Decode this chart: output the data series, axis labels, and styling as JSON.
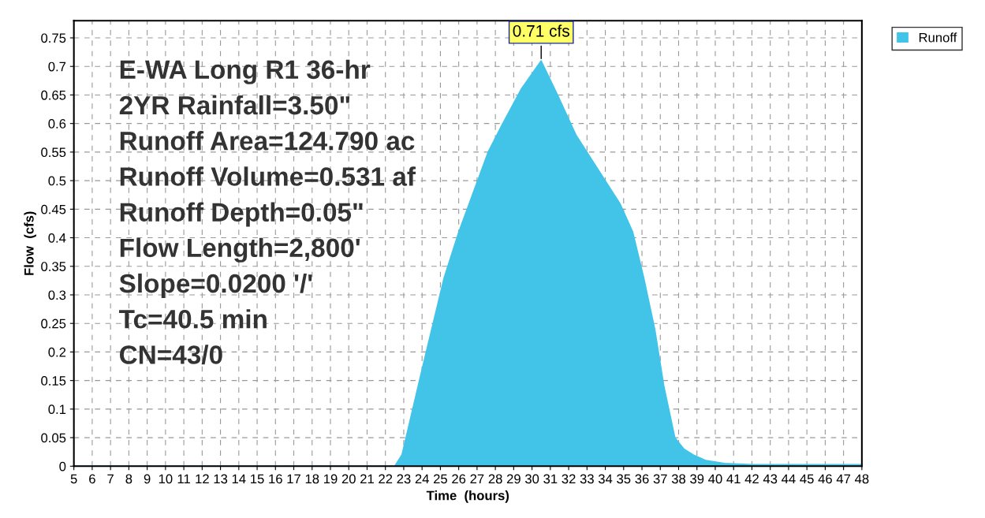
{
  "chart_data": {
    "type": "area",
    "xlabel": "Time  (hours)",
    "ylabel": "Flow  (cfs)",
    "xlim": [
      5,
      48
    ],
    "xticks": [
      5,
      6,
      7,
      8,
      9,
      10,
      11,
      12,
      13,
      14,
      15,
      16,
      17,
      18,
      19,
      20,
      21,
      22,
      23,
      24,
      25,
      26,
      27,
      28,
      29,
      30,
      31,
      32,
      33,
      34,
      35,
      36,
      37,
      38,
      39,
      40,
      41,
      42,
      43,
      44,
      45,
      46,
      47,
      48
    ],
    "ylim": [
      0,
      0.78
    ],
    "yticks": [
      0,
      0.05,
      0.1,
      0.15,
      0.2,
      0.25,
      0.3,
      0.35,
      0.4,
      0.45,
      0.5,
      0.55,
      0.6,
      0.65,
      0.7,
      0.75
    ],
    "grid": true,
    "legend": "top right",
    "series": [
      {
        "name": "Runoff",
        "color": "#41c4e8",
        "x": [
          5,
          22.5,
          22.9,
          24,
          25.2,
          26,
          26.8,
          27.6,
          28.4,
          29.4,
          30.5,
          31.4,
          32.4,
          33.6,
          34.8,
          35.5,
          36.1,
          36.7,
          37.2,
          37.8,
          38.3,
          38.8,
          39.5,
          40.5,
          42,
          48
        ],
        "values": [
          0,
          0,
          0.02,
          0.17,
          0.33,
          0.41,
          0.48,
          0.55,
          0.6,
          0.66,
          0.71,
          0.65,
          0.58,
          0.52,
          0.46,
          0.41,
          0.33,
          0.24,
          0.14,
          0.05,
          0.03,
          0.02,
          0.01,
          0.005,
          0.003,
          0.003
        ]
      }
    ],
    "annotations": [
      {
        "text": "0.71 cfs",
        "x": 30.5,
        "y": 0.71
      },
      "E-WA Long R1 36-hr",
      "2YR Rainfall=3.50\"",
      "Runoff Area=124.790 ac",
      "Runoff Volume=0.531 af",
      "Runoff Depth=0.05\"",
      "Flow Length=2,800'",
      "Slope=0.0200 '/'",
      "Tc=40.5 min",
      "CN=43/0"
    ]
  }
}
